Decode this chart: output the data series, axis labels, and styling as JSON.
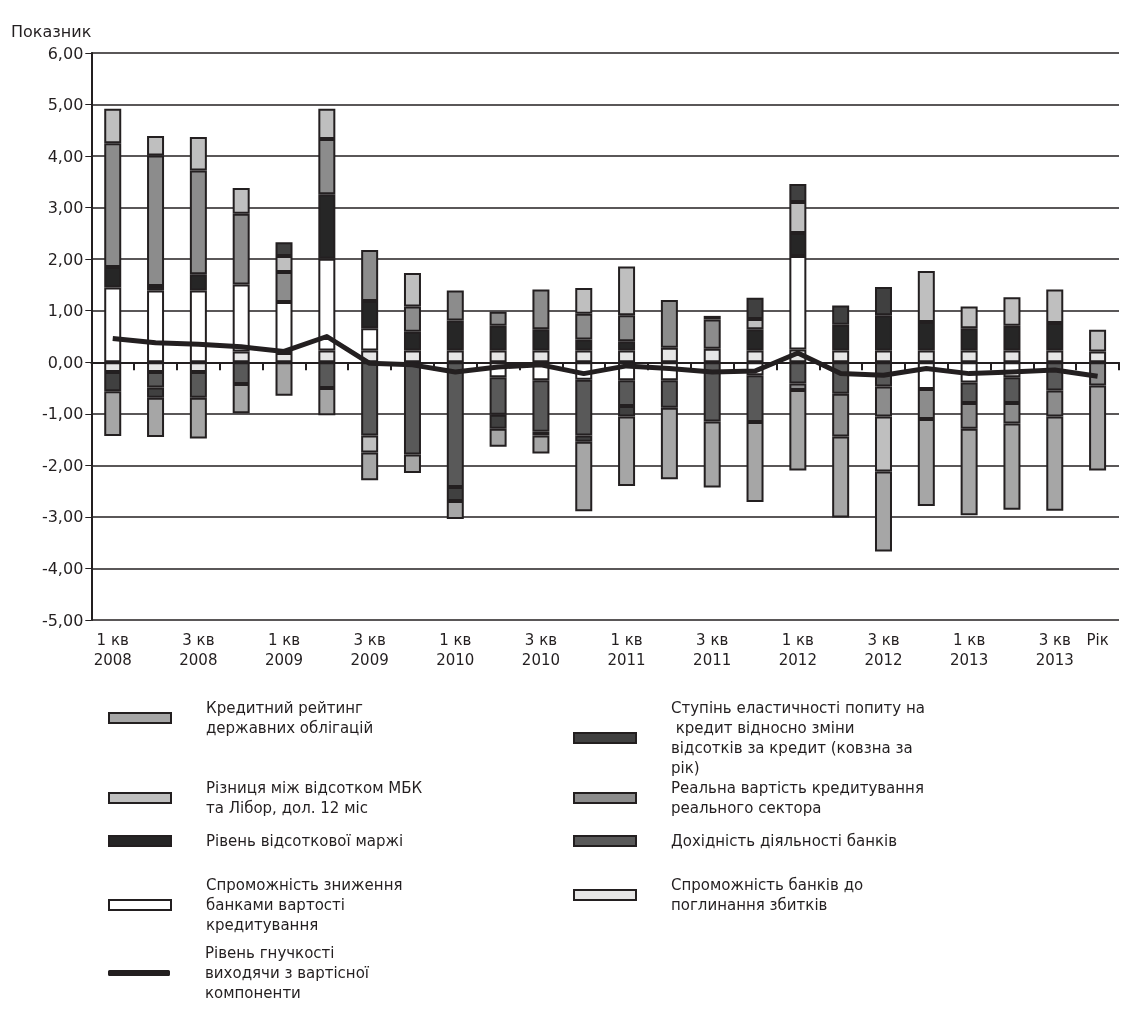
{
  "chart_data": {
    "type": "bar",
    "stacked": true,
    "ylabel": "Показник",
    "categories": [
      "1 кв\n2008",
      null,
      "3 кв\n2008",
      null,
      "1 кв\n2009",
      null,
      "3 кв\n2009",
      null,
      "1 кв\n2010",
      null,
      "3 кв\n2010",
      null,
      "1 кв\n2011",
      null,
      "3 кв\n2011",
      null,
      "1 кв\n2012",
      null,
      "3 кв\n2012",
      null,
      "1 кв\n2013",
      null,
      "3 кв\n2013",
      "Рік"
    ],
    "ylim": [
      -5,
      6
    ],
    "yticks": [
      {
        "value": -5,
        "label": "-5,00"
      },
      {
        "value": -4,
        "label": "-4,00"
      },
      {
        "value": -3,
        "label": "-3,00"
      },
      {
        "value": -2,
        "label": "-2,00"
      },
      {
        "value": -1,
        "label": "-1,00"
      },
      {
        "value": 0,
        "label": "0,00"
      },
      {
        "value": 1,
        "label": "1,00"
      },
      {
        "value": 2,
        "label": "2,00"
      },
      {
        "value": 3,
        "label": "3,00"
      },
      {
        "value": 4,
        "label": "4,00"
      },
      {
        "value": 5,
        "label": "5,00"
      },
      {
        "value": 6,
        "label": "6,00"
      }
    ],
    "grid": "y",
    "legend": "bottom",
    "marker": "none",
    "series": [
      {
        "type": "bar",
        "name": "Спроможність банків до поглинання збитків",
        "color": "#e6e6e6",
        "values": [
          -0.19,
          -0.19,
          -0.19,
          0.21,
          0.18,
          0.23,
          0.23,
          0.23,
          0.23,
          0.23,
          0.23,
          0.23,
          0.23,
          0.28,
          0.26,
          0.23,
          0.25,
          0.23,
          0.23,
          0.23,
          0.23,
          0.23,
          0.23,
          0.21
        ]
      },
      {
        "type": "bar",
        "name": "Спроможність зниження банками вартості кредитування",
        "color": "#ffffff",
        "values": [
          1.45,
          1.39,
          1.39,
          1.3,
          0.99,
          1.78,
          0.43,
          null,
          null,
          -0.29,
          -0.35,
          -0.34,
          -0.35,
          -0.35,
          null,
          -0.25,
          1.81,
          null,
          null,
          -0.52,
          -0.39,
          -0.29,
          null,
          null
        ]
      },
      {
        "type": "bar",
        "name": "Рівень відсоткової маржі",
        "color": "#262626",
        "values": [
          0.4,
          0.09,
          0.32,
          null,
          null,
          1.25,
          0.53,
          0.36,
          0.58,
          0.48,
          0.41,
          0.21,
          0.18,
          null,
          null,
          0.41,
          0.45,
          0.5,
          0.68,
          0.55,
          0.43,
          0.48,
          0.53,
          null
        ]
      },
      {
        "type": "bar",
        "name": "Дохідність діяльності банків",
        "color": "#595959",
        "values": [
          null,
          -0.3,
          -0.5,
          -0.42,
          null,
          -0.5,
          -1.42,
          -1.79,
          -2.42,
          -0.73,
          -1.0,
          -1.08,
          -0.5,
          -0.53,
          -1.15,
          -0.91,
          -0.41,
          -0.61,
          -0.47,
          null,
          -0.4,
          -0.5,
          -0.55,
          null
        ]
      },
      {
        "type": "bar",
        "name": "Реальна вартість кредитування реального сектора",
        "color": "#8c8c8c",
        "values": [
          2.4,
          2.53,
          2.01,
          1.37,
          0.58,
          1.07,
          0.99,
          0.49,
          0.58,
          0.27,
          0.77,
          0.5,
          0.5,
          0.93,
          0.57,
          null,
          -0.13,
          -0.83,
          -0.58,
          -0.58,
          -0.5,
          -0.4,
          -0.5,
          -0.45
        ]
      },
      {
        "type": "bar",
        "name": "Різниця між відсотком МБК та Лібор, дол. 12 міс",
        "color": "#bfbfbf",
        "values": [
          0.67,
          0.38,
          0.65,
          0.5,
          0.31,
          0.59,
          -0.33,
          0.65,
          null,
          null,
          null,
          0.5,
          0.95,
          null,
          null,
          0.2,
          0.6,
          null,
          -1.07,
          0.99,
          0.42,
          0.55,
          0.65,
          0.42
        ]
      },
      {
        "type": "bar",
        "name": "Ступінь еластичності попиту на кредит відносно зміни відсотків за кредит (ковзна за рік)",
        "color": "#404040",
        "values": [
          -0.37,
          -0.2,
          null,
          null,
          0.27,
          null,
          null,
          null,
          -0.27,
          -0.27,
          -0.07,
          -0.12,
          -0.2,
          null,
          0.07,
          0.41,
          0.35,
          0.37,
          0.55,
          null,
          null,
          null,
          null,
          null
        ]
      },
      {
        "type": "bar",
        "name": "Кредитний рейтинг державних облігацій",
        "color": "#a6a6a6",
        "values": [
          -0.87,
          -0.76,
          -0.79,
          -0.57,
          -0.65,
          -0.53,
          -0.54,
          -0.36,
          -0.35,
          -0.35,
          -0.35,
          -1.35,
          -1.35,
          -1.39,
          -1.28,
          -1.55,
          -1.56,
          -1.57,
          -1.55,
          -1.69,
          -1.68,
          -1.67,
          -1.83,
          -1.65
        ]
      },
      {
        "type": "line",
        "name": "Рівень гнучкості виходячи з вартісної компоненти",
        "color": "#231f20",
        "values": [
          0.46,
          0.38,
          0.35,
          0.3,
          0.21,
          0.5,
          -0.02,
          -0.05,
          -0.19,
          -0.09,
          -0.05,
          -0.22,
          -0.07,
          -0.12,
          -0.19,
          -0.17,
          0.18,
          -0.22,
          -0.25,
          -0.12,
          -0.22,
          -0.19,
          -0.15,
          -0.27
        ]
      }
    ]
  }
}
